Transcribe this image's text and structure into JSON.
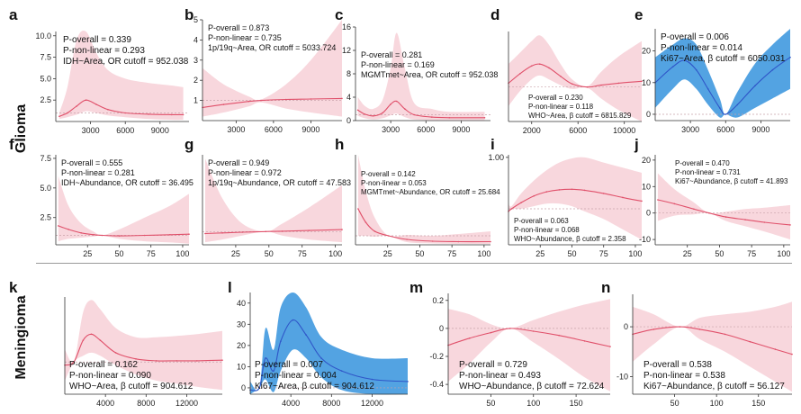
{
  "row_labels": {
    "glioma": "Glioma",
    "meningioma": "Meningioma"
  },
  "colors": {
    "red_line": "#e0506a",
    "red_band": "#f8d7dd",
    "blue_line": "#2f55c8",
    "blue_band": "#4a9ee0",
    "ref_line": "#c9a3ab"
  },
  "chart_data": [
    {
      "id": "a",
      "type": "line",
      "letter": "a",
      "annotations": [
        "P-overall = 0.339",
        "P-non-linear = 0.293",
        "IDH~Area, OR cutoff = 952.038"
      ],
      "xlim": [
        0,
        11500
      ],
      "ylim": [
        0,
        10.5
      ],
      "xticks": [
        3000,
        6000,
        9000
      ],
      "yticks": [
        2.5,
        5.0,
        7.5,
        10.0
      ],
      "ytick_labels": [
        "2.5",
        "5.0",
        "7.5",
        "10.0"
      ],
      "ref": 1,
      "x": [
        300,
        1000,
        1800,
        2600,
        3500,
        4500,
        6000,
        8000,
        10000,
        11000
      ],
      "y": [
        0.6,
        1.0,
        1.8,
        2.5,
        2.0,
        1.4,
        1.0,
        0.85,
        0.8,
        0.8
      ],
      "lower": [
        0.3,
        0.5,
        0.8,
        1.2,
        1.0,
        0.7,
        0.5,
        0.3,
        0.2,
        0.2
      ],
      "upper": [
        1.0,
        4.0,
        9.5,
        10.5,
        8.0,
        6.0,
        5.0,
        4.5,
        4.2,
        4.0
      ],
      "text_pos": "top",
      "blue": false
    },
    {
      "id": "b",
      "type": "line",
      "letter": "b",
      "annotations": [
        "P-overall = 0.873",
        "P-non-linear = 0.735",
        "1p/19q~Area, OR cutoff = 5033.724"
      ],
      "xlim": [
        300,
        11500
      ],
      "ylim": [
        0,
        5
      ],
      "xticks": [
        3000,
        6000,
        9000
      ],
      "yticks": [
        1,
        2,
        3,
        4,
        5
      ],
      "ytick_labels": [
        "1",
        "2",
        "3",
        "4",
        "5"
      ],
      "ref": 1,
      "x": [
        300,
        2000,
        4000,
        5000,
        7000,
        9000,
        11500
      ],
      "y": [
        0.65,
        0.8,
        0.95,
        1.0,
        1.05,
        1.07,
        1.1
      ],
      "lower": [
        0.2,
        0.4,
        0.7,
        0.9,
        0.6,
        0.4,
        0.2
      ],
      "upper": [
        2.6,
        1.8,
        1.2,
        1.05,
        1.8,
        3.0,
        5.0
      ],
      "text_pos": "top",
      "blue": false
    },
    {
      "id": "c",
      "type": "line",
      "letter": "c",
      "annotations": [
        "P-overall = 0.281",
        "P-non-linear = 0.169",
        "MGMTmet~Area, OR cutoff = 952.038"
      ],
      "xlim": [
        0,
        11500
      ],
      "ylim": [
        0,
        16
      ],
      "xticks": [
        3000,
        6000,
        9000
      ],
      "yticks": [
        0,
        4,
        8,
        12,
        16
      ],
      "ytick_labels": [
        "0",
        "4",
        "8",
        "12",
        "16"
      ],
      "ref": 1,
      "x": [
        200,
        800,
        1500,
        2300,
        3000,
        3500,
        4200,
        5000,
        6500,
        8000,
        11000
      ],
      "y": [
        1.8,
        1.1,
        0.8,
        1.3,
        2.8,
        3.3,
        2.0,
        1.0,
        0.6,
        0.5,
        0.5
      ],
      "lower": [
        0.8,
        0.4,
        0.2,
        0.4,
        0.9,
        1.2,
        0.6,
        0.2,
        0.1,
        0.1,
        0.1
      ],
      "upper": [
        4.0,
        2.5,
        2.0,
        3.5,
        9.0,
        15.0,
        9.0,
        3.0,
        2.0,
        1.5,
        1.5
      ],
      "text_pos": "mid",
      "blue": false
    },
    {
      "id": "d",
      "type": "line",
      "letter": "d",
      "annotations": [
        "P-overall = 0.230",
        "P-non-linear = 0.118",
        "WHO~Area, β cutoff = 6815.829"
      ],
      "xlim": [
        0,
        11500
      ],
      "ylim": [
        -0.9,
        1.45
      ],
      "xticks": [
        2000,
        6000,
        10000
      ],
      "yticks": [],
      "ytick_labels": [],
      "ref": 0,
      "x": [
        0,
        1000,
        2000,
        2700,
        3500,
        4500,
        5500,
        6800,
        8000,
        9500,
        11500
      ],
      "y": [
        0.1,
        0.35,
        0.55,
        0.6,
        0.5,
        0.28,
        0.08,
        0.0,
        0.05,
        0.1,
        0.15
      ],
      "lower": [
        -0.5,
        -0.1,
        0.2,
        0.3,
        0.2,
        0.05,
        -0.05,
        -0.02,
        -0.3,
        -0.6,
        -0.9
      ],
      "upper": [
        0.6,
        0.9,
        1.2,
        1.35,
        1.1,
        0.6,
        0.2,
        0.02,
        0.4,
        0.8,
        1.2
      ],
      "text_pos": "bottom",
      "blue": false
    },
    {
      "id": "e",
      "type": "line",
      "letter": "e",
      "annotations": [
        "P-overall = 0.006",
        "P-non-linear = 0.014",
        "Ki67~Area, β cutoff = 6050.031"
      ],
      "xlim": [
        0,
        11500
      ],
      "ylim": [
        -2,
        27
      ],
      "xticks": [
        3000,
        6000,
        9000
      ],
      "yticks": [
        0,
        10,
        20
      ],
      "ytick_labels": [
        "0",
        "10",
        "20"
      ],
      "ref": 0,
      "x": [
        0,
        1500,
        2500,
        3500,
        4500,
        5500,
        6000,
        7000,
        8500,
        10000,
        11500
      ],
      "y": [
        10,
        15,
        17,
        14,
        8,
        2,
        0,
        3,
        9,
        14,
        18
      ],
      "lower": [
        2,
        8,
        11,
        8,
        3,
        -1,
        0,
        -1,
        2,
        5,
        8
      ],
      "upper": [
        18,
        22,
        24,
        22,
        14,
        5,
        0,
        7,
        16,
        22,
        27
      ],
      "text_pos": "top",
      "blue": true
    },
    {
      "id": "f",
      "type": "line",
      "letter": "f",
      "annotations": [
        "P-overall = 0.555",
        "P-non-linear = 0.281",
        "IDH~Abundance, OR cutoff = 36.495"
      ],
      "xlim": [
        0,
        105
      ],
      "ylim": [
        0.2,
        7.8
      ],
      "xticks": [
        25,
        50,
        75,
        100
      ],
      "yticks": [
        2.5,
        5.0,
        7.5
      ],
      "ytick_labels": [
        "2.5",
        "5.0",
        "7.5"
      ],
      "ref": 1,
      "x": [
        2,
        10,
        20,
        30,
        36.5,
        50,
        70,
        90,
        105
      ],
      "y": [
        1.8,
        1.5,
        1.2,
        1.05,
        1.0,
        0.95,
        1.0,
        1.05,
        1.1
      ],
      "lower": [
        0.5,
        0.7,
        0.8,
        0.9,
        1.0,
        0.7,
        0.5,
        0.4,
        0.3
      ],
      "upper": [
        6.0,
        3.5,
        2.0,
        1.3,
        1.0,
        1.5,
        2.5,
        3.5,
        4.5
      ],
      "text_pos": "top",
      "blue": false
    },
    {
      "id": "g",
      "type": "line",
      "letter": "g",
      "annotations": [
        "P-overall = 0.949",
        "P-non-linear = 0.972",
        "1p/19q~Abundance, OR cutoff = 47.583"
      ],
      "xlim": [
        0,
        105
      ],
      "ylim": [
        0,
        6.8
      ],
      "xticks": [
        25,
        50,
        75,
        100
      ],
      "yticks": [],
      "ytick_labels": [],
      "ref": 1,
      "x": [
        2,
        15,
        30,
        47.6,
        60,
        80,
        105
      ],
      "y": [
        0.85,
        0.9,
        0.95,
        1.0,
        1.03,
        1.08,
        1.15
      ],
      "lower": [
        0.2,
        0.4,
        0.7,
        1.0,
        0.7,
        0.4,
        0.2
      ],
      "upper": [
        6.5,
        3.5,
        1.6,
        1.0,
        1.6,
        2.8,
        4.5
      ],
      "text_pos": "top",
      "blue": false
    },
    {
      "id": "h",
      "type": "line",
      "letter": "h",
      "annotations": [
        "P-overall = 0.142",
        "P-non-linear = 0.053",
        "MGMTmet~Abundance, OR cutoff = 25.684"
      ],
      "xlim": [
        0,
        105
      ],
      "ylim": [
        0,
        10
      ],
      "xticks": [
        25,
        50,
        75,
        100
      ],
      "yticks": [],
      "ytick_labels": [],
      "ref": 1,
      "x": [
        2,
        8,
        15,
        25.7,
        40,
        60,
        80,
        105
      ],
      "y": [
        4.0,
        2.5,
        1.5,
        1.0,
        0.6,
        0.4,
        0.35,
        0.35
      ],
      "lower": [
        1.0,
        1.0,
        0.9,
        1.0,
        0.3,
        0.15,
        0.1,
        0.1
      ],
      "upper": [
        10.0,
        6.0,
        3.0,
        1.0,
        1.1,
        1.0,
        1.2,
        1.5
      ],
      "text_pos": "upper-mid",
      "blue": false
    },
    {
      "id": "i",
      "type": "line",
      "letter": "i",
      "annotations": [
        "P-overall = 0.063",
        "P-non-linear = 0.068",
        "WHO~Abundance, β cutoff = 2.358"
      ],
      "xlim": [
        0,
        105
      ],
      "ylim": [
        -0.7,
        1.05
      ],
      "xticks": [
        25,
        50,
        75,
        100
      ],
      "yticks": [
        1.0
      ],
      "ytick_labels": [
        "1.00"
      ],
      "ref": 0,
      "x": [
        0,
        2.4,
        10,
        20,
        30,
        40,
        50,
        60,
        75,
        90,
        105
      ],
      "y": [
        -0.05,
        0.0,
        0.12,
        0.25,
        0.33,
        0.37,
        0.38,
        0.36,
        0.3,
        0.22,
        0.15
      ],
      "lower": [
        -0.05,
        0.0,
        0.0,
        0.05,
        0.1,
        0.1,
        0.05,
        -0.05,
        -0.2,
        -0.4,
        -0.6
      ],
      "upper": [
        0.1,
        0.05,
        0.3,
        0.55,
        0.75,
        0.9,
        0.98,
        1.0,
        0.9,
        0.8,
        0.7
      ],
      "text_pos": "bottom",
      "blue": false
    },
    {
      "id": "j",
      "type": "line",
      "letter": "j",
      "annotations": [
        "P-overall = 0.470",
        "P-non-linear = 0.731",
        "Ki67~Abundance, β cutoff = 41.893"
      ],
      "xlim": [
        0,
        105
      ],
      "ylim": [
        -12,
        22
      ],
      "xticks": [
        25,
        50,
        75,
        100
      ],
      "yticks": [
        -10,
        0,
        10,
        20
      ],
      "ytick_labels": [
        "-10",
        "0",
        "10",
        "20"
      ],
      "ref": 0,
      "x": [
        2,
        15,
        30,
        41.9,
        55,
        70,
        85,
        105
      ],
      "y": [
        5,
        3.5,
        1.5,
        0,
        -1.5,
        -2.5,
        -3.5,
        -4.5
      ],
      "lower": [
        -3,
        -1,
        -0.5,
        0,
        -3,
        -5,
        -7,
        -10
      ],
      "upper": [
        15,
        9,
        4,
        0,
        0.5,
        1.5,
        2,
        3
      ],
      "text_pos": "top",
      "blue": false
    },
    {
      "id": "k",
      "type": "line",
      "letter": "k",
      "annotations": [
        "P-overall = 0.162",
        "P-non-linear = 0.090",
        "WHO~Area, β cutoff = 904.612"
      ],
      "xlim": [
        0,
        15500
      ],
      "ylim": [
        -0.52,
        1.05
      ],
      "xticks": [
        4000,
        8000,
        12000
      ],
      "yticks": [],
      "ytick_labels": [],
      "ref": 0,
      "x": [
        0,
        900,
        1800,
        2600,
        3500,
        5000,
        7000,
        9000,
        11000,
        13000,
        15500
      ],
      "y": [
        -0.05,
        0.0,
        0.35,
        0.45,
        0.35,
        0.15,
        0.05,
        0.02,
        0.02,
        0.02,
        0.03
      ],
      "lower": [
        -0.3,
        0.0,
        0.1,
        0.15,
        0.1,
        -0.05,
        -0.2,
        -0.3,
        -0.35,
        -0.4,
        -0.45
      ],
      "upper": [
        0.2,
        0.02,
        0.8,
        1.0,
        0.85,
        0.55,
        0.4,
        0.4,
        0.42,
        0.45,
        0.5
      ],
      "text_pos": "bottom",
      "blue": false
    },
    {
      "id": "l",
      "type": "line",
      "letter": "l",
      "annotations": [
        "P-overall = 0.007",
        "P-non-linear = 0.004",
        "Ki67~Area, β cutoff = 904.612"
      ],
      "xlim": [
        0,
        15500
      ],
      "ylim": [
        -3,
        45
      ],
      "xticks": [
        4000,
        8000,
        12000
      ],
      "yticks": [
        0,
        10,
        20,
        30,
        40
      ],
      "ytick_labels": [
        "0",
        "10",
        "20",
        "30",
        "40"
      ],
      "ref": 0,
      "x": [
        0,
        905,
        1500,
        2300,
        3000,
        4200,
        5500,
        7000,
        9000,
        12000,
        15500
      ],
      "y": [
        -1,
        0,
        14,
        8,
        22,
        32,
        25,
        14,
        8,
        4,
        3
      ],
      "lower": [
        -3,
        0,
        4,
        -2,
        8,
        18,
        14,
        5,
        -1,
        -5,
        -7
      ],
      "upper": [
        3,
        0,
        28,
        18,
        38,
        45,
        38,
        24,
        18,
        14,
        14
      ],
      "text_pos": "bottom",
      "blue": true
    },
    {
      "id": "m",
      "type": "line",
      "letter": "m",
      "annotations": [
        "P-overall = 0.729",
        "P-non-linear = 0.493",
        "WHO~Abundance, β cutoff = 72.624"
      ],
      "xlim": [
        0,
        190
      ],
      "ylim": [
        -0.47,
        0.25
      ],
      "xticks": [
        50,
        100,
        150
      ],
      "yticks": [
        -0.4,
        -0.2,
        0,
        0.2
      ],
      "ytick_labels": [
        "-0.4",
        "-0.2",
        "0",
        "0.2"
      ],
      "ref": 0,
      "x": [
        0,
        25,
        50,
        72.6,
        100,
        130,
        160,
        190
      ],
      "y": [
        -0.12,
        -0.07,
        -0.03,
        0.0,
        -0.02,
        -0.05,
        -0.09,
        -0.13
      ],
      "lower": [
        -0.38,
        -0.25,
        -0.1,
        0.0,
        -0.1,
        -0.22,
        -0.35,
        -0.45
      ],
      "upper": [
        0.14,
        0.1,
        0.03,
        0.0,
        0.06,
        0.12,
        0.17,
        0.21
      ],
      "text_pos": "bottom",
      "blue": false
    },
    {
      "id": "n",
      "type": "line",
      "letter": "n",
      "annotations": [
        "P-overall = 0.538",
        "P-non-linear = 0.538",
        "Ki67~Abundance, β cutoff = 56.127"
      ],
      "xlim": [
        0,
        190
      ],
      "ylim": [
        -13.5,
        6.5
      ],
      "xticks": [
        50,
        100,
        150
      ],
      "yticks": [
        -10,
        0
      ],
      "ytick_labels": [
        "-10",
        "0"
      ],
      "ref": 0,
      "x": [
        0,
        25,
        56.1,
        80,
        110,
        140,
        170,
        190
      ],
      "y": [
        -1.5,
        -0.5,
        0.0,
        -0.5,
        -1.5,
        -3,
        -4.5,
        -5.5
      ],
      "lower": [
        -7,
        -3.5,
        0.0,
        -2.5,
        -5,
        -8,
        -11,
        -13
      ],
      "upper": [
        4,
        2.5,
        0.0,
        1.8,
        2.5,
        3,
        4,
        5
      ],
      "text_pos": "bottom",
      "blue": false
    }
  ]
}
